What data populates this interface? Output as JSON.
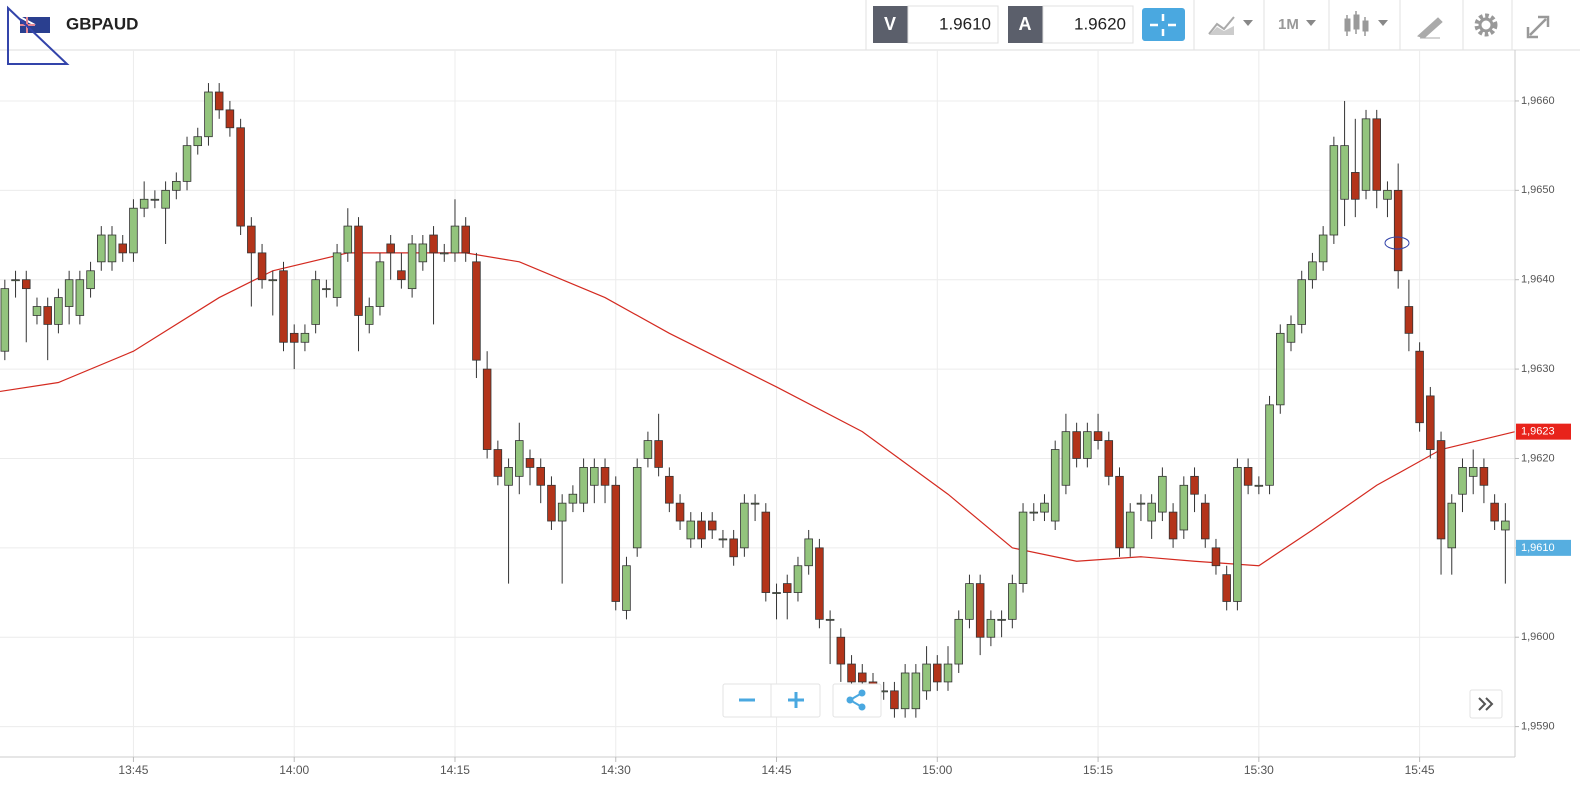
{
  "toolbar": {
    "symbol": "GBPAUD",
    "bid_label": "V",
    "bid": "1.9610",
    "ask_label": "A",
    "ask": "1.9620",
    "timeframe": "1M"
  },
  "chart_data": {
    "type": "candlestick",
    "grid": true,
    "up_color": "#93c47d",
    "down_color": "#b3341a",
    "xlim": [
      -0.45,
      140.9
    ],
    "ylim": [
      1.95866,
      1.96657
    ],
    "xticks": [
      {
        "value": 12,
        "label": "13:45"
      },
      {
        "value": 27,
        "label": "14:00"
      },
      {
        "value": 42,
        "label": "14:15"
      },
      {
        "value": 57,
        "label": "14:30"
      },
      {
        "value": 72,
        "label": "14:45"
      },
      {
        "value": 87,
        "label": "15:00"
      },
      {
        "value": 102,
        "label": "15:15"
      },
      {
        "value": 117,
        "label": "15:30"
      },
      {
        "value": 132,
        "label": "15:45"
      }
    ],
    "yticks": [
      {
        "value": 1.966,
        "label": "1,9660"
      },
      {
        "value": 1.965,
        "label": "1,9650"
      },
      {
        "value": 1.964,
        "label": "1,9640"
      },
      {
        "value": 1.963,
        "label": "1,9630"
      },
      {
        "value": 1.962,
        "label": "1,9620"
      },
      {
        "value": 1.961,
        "label": "1,9610"
      },
      {
        "value": 1.96,
        "label": "1,9600"
      },
      {
        "value": 1.959,
        "label": "1,9590"
      }
    ],
    "open": [
      1.9632,
      1.964,
      1.964,
      1.9636,
      1.9637,
      1.9635,
      1.9637,
      1.9636,
      1.9639,
      1.9642,
      1.9642,
      1.9644,
      1.9643,
      1.9648,
      1.9649,
      1.9648,
      1.965,
      1.9651,
      1.9655,
      1.9656,
      1.9661,
      1.9659,
      1.9657,
      1.9646,
      1.9643,
      1.964,
      1.9641,
      1.9634,
      1.9633,
      1.9635,
      1.9639,
      1.9638,
      1.9643,
      1.9646,
      1.9635,
      1.9637,
      1.9644,
      1.9641,
      1.9639,
      1.9642,
      1.9645,
      1.9643,
      1.9643,
      1.9646,
      1.9642,
      1.963,
      1.9621,
      1.9617,
      1.9618,
      1.962,
      1.9619,
      1.9617,
      1.9613,
      1.9615,
      1.9615,
      1.9617,
      1.9619,
      1.9617,
      1.9603,
      1.961,
      1.962,
      1.9622,
      1.9618,
      1.9615,
      1.9611,
      1.9613,
      1.9613,
      1.9611,
      1.9611,
      1.961,
      1.9615,
      1.9614,
      1.9605,
      1.9606,
      1.9605,
      1.9608,
      1.961,
      1.9602,
      1.96,
      1.9597,
      1.9596,
      1.9595,
      1.9594,
      1.9594,
      1.9592,
      1.9592,
      1.9594,
      1.9597,
      1.9595,
      1.9597,
      1.9602,
      1.9606,
      1.96,
      1.9602,
      1.9602,
      1.9606,
      1.9614,
      1.9614,
      1.9613,
      1.9617,
      1.9623,
      1.962,
      1.9623,
      1.9622,
      1.9618,
      1.961,
      1.9615,
      1.9613,
      1.9614,
      1.9614,
      1.9612,
      1.9618,
      1.9615,
      1.961,
      1.9607,
      1.9604,
      1.9619,
      1.9617,
      1.9617,
      1.9626,
      1.9633,
      1.9635,
      1.964,
      1.9642,
      1.9645,
      1.9649,
      1.9652,
      1.965,
      1.9658,
      1.9649,
      1.965,
      1.9637,
      1.9632,
      1.9627,
      1.9622,
      1.961,
      1.9616,
      1.9618,
      1.9619,
      1.9615,
      1.9612
    ],
    "high": [
      1.964,
      1.9641,
      1.9641,
      1.9638,
      1.9638,
      1.9639,
      1.9641,
      1.9641,
      1.9642,
      1.9646,
      1.9646,
      1.9645,
      1.9649,
      1.9651,
      1.965,
      1.9651,
      1.9652,
      1.9656,
      1.9657,
      1.9662,
      1.9662,
      1.966,
      1.9658,
      1.9647,
      1.9644,
      1.9641,
      1.9642,
      1.9635,
      1.9635,
      1.9641,
      1.964,
      1.9644,
      1.9648,
      1.9647,
      1.9638,
      1.9643,
      1.9645,
      1.9643,
      1.9645,
      1.9645,
      1.9646,
      1.9644,
      1.9649,
      1.9647,
      1.9643,
      1.9632,
      1.9622,
      1.962,
      1.9624,
      1.9621,
      1.962,
      1.9618,
      1.9616,
      1.9617,
      1.962,
      1.962,
      1.962,
      1.9618,
      1.9609,
      1.962,
      1.9623,
      1.9625,
      1.9619,
      1.9616,
      1.9614,
      1.9614,
      1.9614,
      1.9612,
      1.9612,
      1.9616,
      1.9616,
      1.9615,
      1.9606,
      1.9607,
      1.9609,
      1.9612,
      1.9611,
      1.9603,
      1.9601,
      1.9598,
      1.9597,
      1.9596,
      1.9595,
      1.9595,
      1.9597,
      1.9597,
      1.9599,
      1.9598,
      1.9599,
      1.9603,
      1.9607,
      1.9607,
      1.9603,
      1.9603,
      1.9607,
      1.9615,
      1.9615,
      1.9616,
      1.9622,
      1.9625,
      1.9624,
      1.9624,
      1.9625,
      1.9623,
      1.9619,
      1.9615,
      1.9616,
      1.9616,
      1.9619,
      1.9615,
      1.9618,
      1.9619,
      1.9616,
      1.9611,
      1.9608,
      1.962,
      1.962,
      1.9618,
      1.9627,
      1.9635,
      1.9636,
      1.9641,
      1.9643,
      1.9646,
      1.9656,
      1.966,
      1.9658,
      1.9659,
      1.9659,
      1.9651,
      1.9653,
      1.964,
      1.9633,
      1.9628,
      1.9623,
      1.9616,
      1.962,
      1.9621,
      1.962,
      1.9616,
      1.9615
    ],
    "low": [
      1.9631,
      1.9638,
      1.9633,
      1.9635,
      1.9631,
      1.9634,
      1.9635,
      1.9635,
      1.9638,
      1.9641,
      1.9641,
      1.9642,
      1.9642,
      1.9647,
      1.9648,
      1.9644,
      1.9649,
      1.965,
      1.9654,
      1.9655,
      1.9658,
      1.9656,
      1.9645,
      1.9637,
      1.9639,
      1.9636,
      1.9632,
      1.963,
      1.9632,
      1.9634,
      1.9638,
      1.9637,
      1.9642,
      1.9632,
      1.9634,
      1.9636,
      1.964,
      1.9639,
      1.9638,
      1.9641,
      1.9635,
      1.9642,
      1.9642,
      1.9642,
      1.9629,
      1.962,
      1.9617,
      1.9606,
      1.9616,
      1.9617,
      1.9615,
      1.9612,
      1.9606,
      1.9614,
      1.9614,
      1.9615,
      1.9615,
      1.9603,
      1.9602,
      1.9609,
      1.9619,
      1.9618,
      1.9614,
      1.9612,
      1.961,
      1.961,
      1.9611,
      1.961,
      1.9608,
      1.9609,
      1.9613,
      1.9604,
      1.9602,
      1.9602,
      1.9604,
      1.9607,
      1.9601,
      1.9597,
      1.9595,
      1.9593,
      1.9594,
      1.9593,
      1.9593,
      1.9591,
      1.9591,
      1.9591,
      1.9593,
      1.9594,
      1.9594,
      1.9596,
      1.9601,
      1.9598,
      1.9599,
      1.96,
      1.9601,
      1.9605,
      1.9613,
      1.9613,
      1.9612,
      1.9616,
      1.9619,
      1.9619,
      1.9621,
      1.9617,
      1.9609,
      1.9609,
      1.9613,
      1.9611,
      1.9613,
      1.961,
      1.9611,
      1.9614,
      1.961,
      1.9607,
      1.9603,
      1.9603,
      1.9616,
      1.9616,
      1.9616,
      1.9625,
      1.9632,
      1.9634,
      1.9639,
      1.9641,
      1.9644,
      1.9646,
      1.9647,
      1.9649,
      1.9648,
      1.9647,
      1.9639,
      1.9632,
      1.9623,
      1.962,
      1.9607,
      1.9607,
      1.9614,
      1.9616,
      1.9615,
      1.9612,
      1.9606
    ],
    "close": [
      1.9639,
      1.964,
      1.9639,
      1.9637,
      1.9635,
      1.9638,
      1.964,
      1.964,
      1.9641,
      1.9645,
      1.9645,
      1.9643,
      1.9648,
      1.9649,
      1.9649,
      1.965,
      1.9651,
      1.9655,
      1.9656,
      1.9661,
      1.9659,
      1.9657,
      1.9646,
      1.9643,
      1.964,
      1.964,
      1.9633,
      1.9633,
      1.9634,
      1.964,
      1.9639,
      1.9643,
      1.9646,
      1.9636,
      1.9637,
      1.9642,
      1.9643,
      1.964,
      1.9644,
      1.9644,
      1.9643,
      1.9643,
      1.9646,
      1.9643,
      1.9631,
      1.9621,
      1.9618,
      1.9619,
      1.9622,
      1.9619,
      1.9617,
      1.9613,
      1.9615,
      1.9616,
      1.9619,
      1.9619,
      1.9617,
      1.9604,
      1.9608,
      1.9619,
      1.9622,
      1.9619,
      1.9615,
      1.9613,
      1.9613,
      1.9611,
      1.9612,
      1.9611,
      1.9609,
      1.9615,
      1.9615,
      1.9605,
      1.9605,
      1.9605,
      1.9608,
      1.9611,
      1.9602,
      1.9602,
      1.9597,
      1.9595,
      1.9595,
      1.9594,
      1.9594,
      1.9592,
      1.9596,
      1.9596,
      1.9597,
      1.9595,
      1.9597,
      1.9602,
      1.9606,
      1.96,
      1.9602,
      1.9602,
      1.9606,
      1.9614,
      1.9614,
      1.9615,
      1.9621,
      1.9623,
      1.962,
      1.9623,
      1.9622,
      1.9618,
      1.961,
      1.9614,
      1.9615,
      1.9615,
      1.9618,
      1.9611,
      1.9617,
      1.9616,
      1.9611,
      1.9608,
      1.9604,
      1.9619,
      1.9617,
      1.9617,
      1.9626,
      1.9634,
      1.9635,
      1.964,
      1.9642,
      1.9645,
      1.9655,
      1.9655,
      1.9649,
      1.9658,
      1.965,
      1.965,
      1.9641,
      1.9634,
      1.9624,
      1.9621,
      1.9611,
      1.9615,
      1.9619,
      1.9619,
      1.9617,
      1.9613,
      1.9613
    ],
    "moving_average": {
      "color": "#d42a20",
      "x": [
        -0.45,
        5,
        12,
        20,
        25,
        32,
        43,
        48,
        56,
        62,
        72,
        80,
        88,
        94,
        100,
        106,
        111,
        117,
        122,
        128,
        134,
        140.9
      ],
      "values": [
        1.96275,
        1.96285,
        1.9632,
        1.9638,
        1.9641,
        1.9643,
        1.9643,
        1.9642,
        1.9638,
        1.9634,
        1.9628,
        1.9623,
        1.9616,
        1.961,
        1.96085,
        1.9609,
        1.96085,
        1.9608,
        1.9612,
        1.9617,
        1.9621,
        1.9623
      ]
    },
    "price_markers": [
      {
        "value": 1.9623,
        "label": "1,9623",
        "color": "#e8231b"
      },
      {
        "value": 1.961,
        "label": "1,9610",
        "color": "#56aee0"
      }
    ]
  }
}
